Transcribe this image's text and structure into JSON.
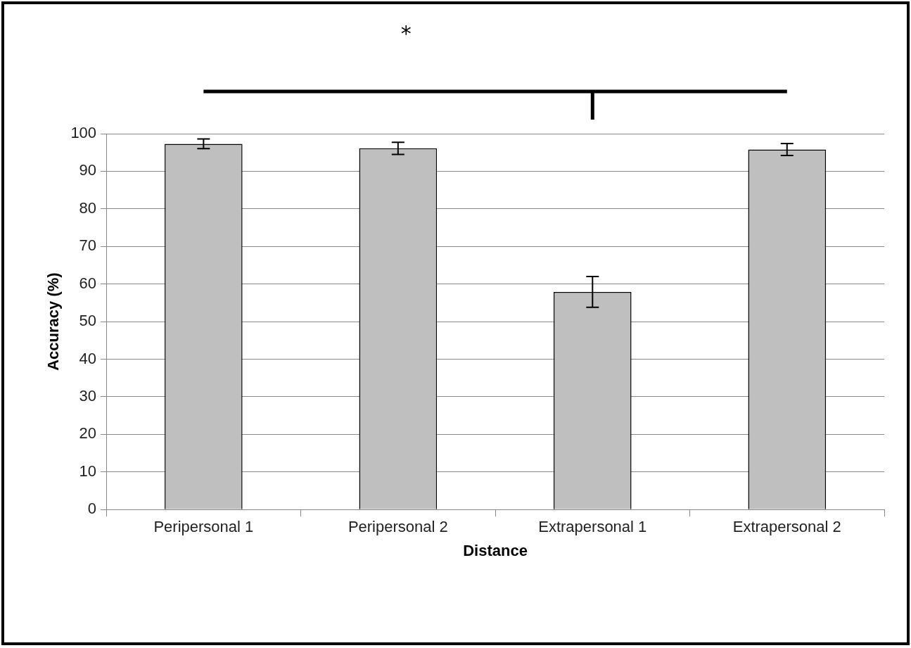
{
  "chart_data": {
    "type": "bar",
    "xlabel": "Distance",
    "ylabel": "Accuracy (%)",
    "categories": [
      "Peripersonal 1",
      "Peripersonal 2",
      "Extrapersonal 1",
      "Extrapersonal 2"
    ],
    "values": [
      97.3,
      96.1,
      57.9,
      95.8
    ],
    "errors": [
      1.3,
      1.6,
      4.1,
      1.6
    ],
    "color": "#bfbfbf",
    "ylim": [
      0,
      100
    ],
    "yticks": [
      0,
      10,
      20,
      30,
      40,
      50,
      60,
      70,
      80,
      90,
      100
    ],
    "grid": "y",
    "legend": false,
    "annotations": [
      "*"
    ]
  }
}
